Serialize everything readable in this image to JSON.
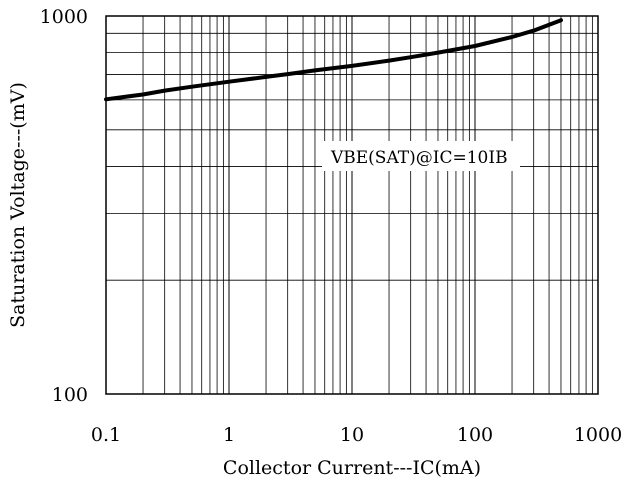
{
  "chart_data": {
    "type": "line",
    "x_scale": "log",
    "y_scale": "log",
    "xlim": [
      0.1,
      1000
    ],
    "ylim": [
      100,
      1000
    ],
    "x_ticks": [
      "0.1",
      "1",
      "10",
      "100",
      "1000"
    ],
    "y_ticks": [
      "100",
      "1000"
    ],
    "xlabel": "Collector Current---IC(mA)",
    "ylabel": "Saturation Voltage---(mV)",
    "annotation": "VBE(SAT)@IC=10IB",
    "grid": true,
    "series": [
      {
        "x": [
          0.1,
          0.2,
          0.3,
          0.5,
          1,
          2,
          3,
          5,
          10,
          20,
          30,
          50,
          100,
          200,
          300,
          500
        ],
        "y": [
          602,
          620,
          635,
          650,
          670,
          690,
          702,
          718,
          738,
          762,
          778,
          800,
          833,
          880,
          915,
          975
        ]
      }
    ],
    "colors": {
      "line": "#000000",
      "grid": "#000000",
      "background": "#ffffff"
    }
  }
}
